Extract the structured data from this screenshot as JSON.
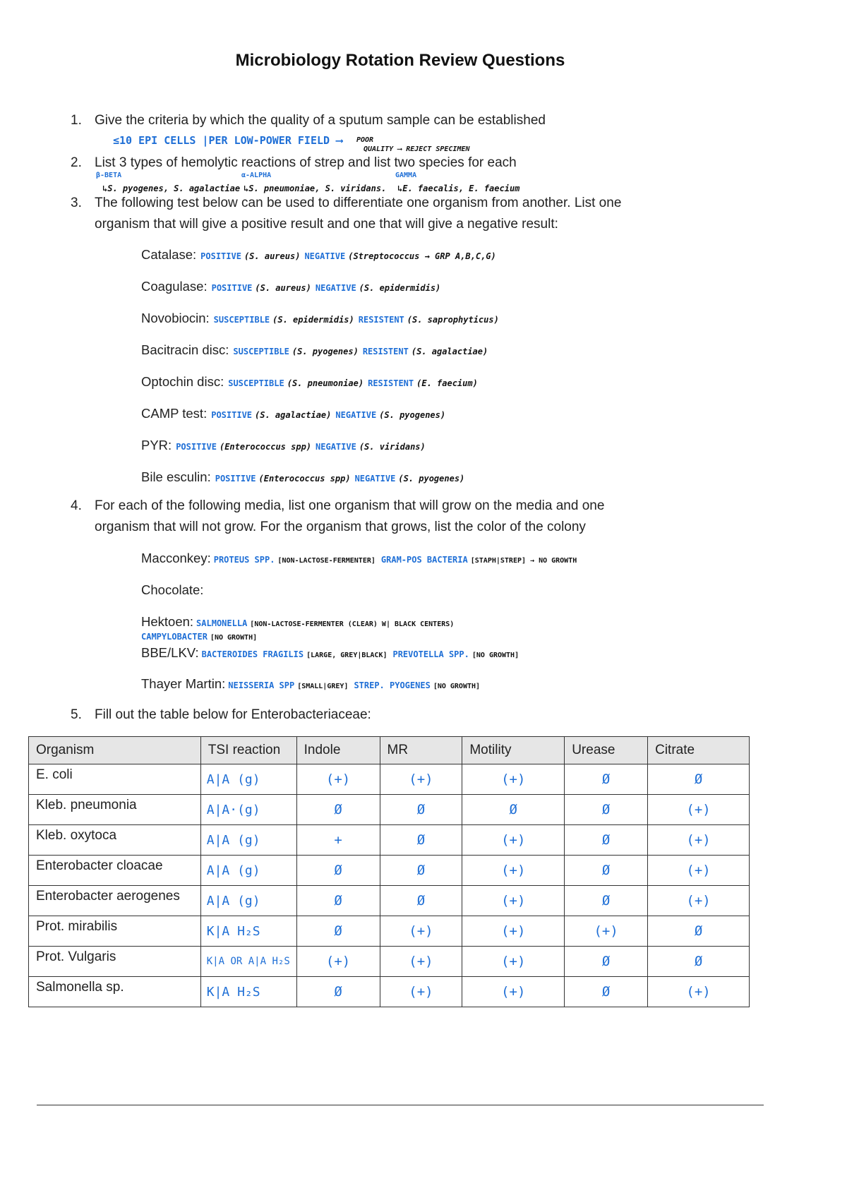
{
  "title": "Microbiology Rotation Review Questions",
  "questions": [
    {
      "num": "1.",
      "text": "Give the criteria by which the quality of a sputum sample can be established",
      "answer_blue": "≤10 EPI CELLS |PER LOW-POWER FIELD ⟶",
      "answer_black1": "POOR",
      "answer_black2": "QUALITY ⟶ REJECT SPECIMEN"
    },
    {
      "num": "2.",
      "text": "List 3 types of hemolytic reactions of strep and list two species for each",
      "types": [
        {
          "label": "β-BETA",
          "species": "↳S. pyogenes, S. agalactiae"
        },
        {
          "label": "α-ALPHA",
          "species": "↳S. pneumoniae, S. viridans."
        },
        {
          "label": "GAMMA",
          "species": "↳E. faecalis, E. faecium"
        }
      ]
    },
    {
      "num": "3.",
      "line1": "The following test below can be used to differentiate one organism from another. List one",
      "line2": "organism that will give a positive result and one that will give a negative result:"
    },
    {
      "num": "4.",
      "line1": "For each of the following media, list one organism that will grow on the media and one",
      "line2": "organism that will not grow. For the organism that grows, list the color of the colony"
    },
    {
      "num": "5.",
      "text": "Fill out the table below for Enterobacteriaceae:"
    }
  ],
  "tests": [
    {
      "label": "Catalase:",
      "pos": "POSITIVE",
      "pos_org": "(S. aureus)",
      "neg": "NEGATIVE",
      "neg_org": "(Streptococcus → GRP A,B,C,G)"
    },
    {
      "label": "Coagulase:",
      "pos": "POSITIVE",
      "pos_org": "(S. aureus)",
      "neg": "NEGATIVE",
      "neg_org": "(S. epidermidis)"
    },
    {
      "label": "Novobiocin:",
      "pos": "SUSCEPTIBLE",
      "pos_org": "(S. epidermidis)",
      "neg": "RESISTENT",
      "neg_org": "(S. saprophyticus)"
    },
    {
      "label": "Bacitracin disc:",
      "pos": "SUSCEPTIBLE",
      "pos_org": "(S. pyogenes)",
      "neg": "RESISTENT",
      "neg_org": "(S. agalactiae)"
    },
    {
      "label": "Optochin disc:",
      "pos": "SUSCEPTIBLE",
      "pos_org": "(S. pneumoniae)",
      "neg": "RESISTENT",
      "neg_org": "(E. faecium)"
    },
    {
      "label": "CAMP test:",
      "pos": "POSITIVE",
      "pos_org": "(S. agalactiae)",
      "neg": "NEGATIVE",
      "neg_org": "(S. pyogenes)"
    },
    {
      "label": "PYR:",
      "pos": "POSITIVE",
      "pos_org": "(Enterococcus spp)",
      "neg": "NEGATIVE",
      "neg_org": "(S. viridans)"
    },
    {
      "label": "Bile esculin:",
      "pos": "POSITIVE",
      "pos_org": "(Enterococcus spp)",
      "neg": "NEGATIVE",
      "neg_org": "(S. pyogenes)"
    }
  ],
  "media": [
    {
      "label": "Macconkey:",
      "a": "PROTEUS SPP.",
      "b": "[NON-LACTOSE-FERMENTER]",
      "c": "GRAM-POS BACTERIA",
      "d": "[STAPH|STREP] → NO GROWTH"
    },
    {
      "label": "Chocolate:"
    },
    {
      "label": "Hektoen:",
      "a": "SALMONELLA",
      "b": "[NON-LACTOSE-FERMENTER (CLEAR) W| BLACK CENTERS)",
      "c": "CAMPYLOBACTER",
      "d": "[NO GROWTH]"
    },
    {
      "label": "BBE/LKV:",
      "a": "BACTEROIDES FRAGILIS",
      "b": "[LARGE, GREY|BLACK]",
      "c": "PREVOTELLA SPP.",
      "d": "[NO GROWTH]"
    },
    {
      "label": "Thayer Martin:",
      "a": "NEISSERIA SPP",
      "b": "[SMALL|GREY]",
      "c": "STREP. PYOGENES",
      "d": "[NO GROWTH]"
    }
  ],
  "table": {
    "headers": [
      "Organism",
      "TSI reaction",
      "Indole",
      "MR",
      "Motility",
      "Urease",
      "Citrate"
    ],
    "rows": [
      [
        "E. coli",
        "A|A (g)",
        "(+)",
        "(+)",
        "(+)",
        "Ø",
        "Ø"
      ],
      [
        "Kleb. pneumonia",
        "A|A·(g)",
        "Ø",
        "Ø",
        "Ø",
        "Ø",
        "(+)"
      ],
      [
        "Kleb. oxytoca",
        "A|A (g)",
        "+",
        "Ø",
        "(+)",
        "Ø",
        "(+)"
      ],
      [
        "Enterobacter cloacae",
        "A|A (g)",
        "Ø",
        "Ø",
        "(+)",
        "Ø",
        "(+)"
      ],
      [
        "Enterobacter aerogenes",
        "A|A (g)",
        "Ø",
        "Ø",
        "(+)",
        "Ø",
        "(+)"
      ],
      [
        "Prot. mirabilis",
        "K|A H₂S",
        "Ø",
        "(+)",
        "(+)",
        "(+)",
        "Ø"
      ],
      [
        "Prot. Vulgaris",
        "K|A OR A|A H₂S",
        "(+)",
        "(+)",
        "(+)",
        "Ø",
        "Ø"
      ],
      [
        "Salmonella sp.",
        "K|A H₂S",
        "Ø",
        "(+)",
        "(+)",
        "Ø",
        "(+)"
      ]
    ]
  },
  "colors": {
    "ink_blue": "#1f6fd6",
    "ink_black": "#111111",
    "header_bg": "#e6e6e6"
  }
}
